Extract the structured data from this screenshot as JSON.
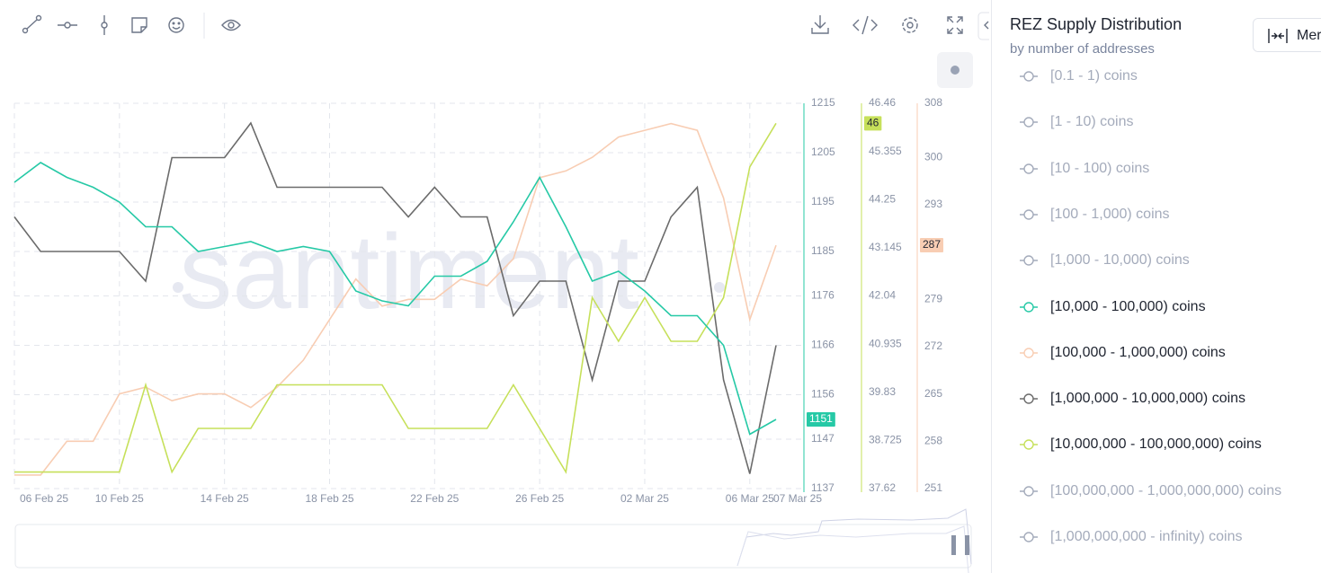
{
  "chart_data": {
    "type": "line",
    "watermark": "santiment",
    "categories": [
      "06 Feb 25",
      "07 Feb 25",
      "08 Feb 25",
      "09 Feb 25",
      "10 Feb 25",
      "11 Feb 25",
      "12 Feb 25",
      "13 Feb 25",
      "14 Feb 25",
      "15 Feb 25",
      "16 Feb 25",
      "17 Feb 25",
      "18 Feb 25",
      "19 Feb 25",
      "20 Feb 25",
      "21 Feb 25",
      "22 Feb 25",
      "23 Feb 25",
      "24 Feb 25",
      "25 Feb 25",
      "26 Feb 25",
      "27 Feb 25",
      "28 Feb 25",
      "01 Mar 25",
      "02 Mar 25",
      "03 Mar 25",
      "04 Mar 25",
      "05 Mar 25",
      "06 Mar 25",
      "07 Mar 25"
    ],
    "xticks": [
      "06 Feb 25",
      "10 Feb 25",
      "14 Feb 25",
      "18 Feb 25",
      "22 Feb 25",
      "26 Feb 25",
      "02 Mar 25",
      "06 Mar 25",
      "07 Mar 25"
    ],
    "ylim": [
      1137,
      1215
    ],
    "yticks": [
      1215,
      1205,
      1195,
      1185,
      1176,
      1166,
      1156,
      1147,
      1137
    ],
    "y2lim": [
      37.62,
      46.46
    ],
    "y2ticks": [
      46.46,
      45.355,
      44.25,
      43.145,
      42.04,
      40.935,
      39.83,
      38.725,
      37.62
    ],
    "y3lim": [
      251,
      308
    ],
    "y3ticks": [
      308,
      300,
      293,
      279,
      272,
      265,
      258,
      251
    ],
    "grid": true,
    "series": [
      {
        "name": "[10,000 - 100,000) coins",
        "color": "#26c9a6",
        "axis": "y",
        "values": [
          1199,
          1203,
          1200,
          1198,
          1195,
          1190,
          1190,
          1185,
          1186,
          1187,
          1185,
          1186,
          1185,
          1177,
          1175,
          1174,
          1180,
          1180,
          1183,
          1191,
          1200,
          1190,
          1179,
          1181,
          1177,
          1172,
          1172,
          1166,
          1148,
          1151
        ]
      },
      {
        "name": "[100,000 - 1,000,000) coins",
        "color": "#f8cdb3",
        "axis": "y3",
        "values": [
          253,
          253,
          258,
          258,
          265,
          266,
          264,
          265,
          265,
          263,
          266,
          270,
          276,
          282,
          278,
          279,
          279,
          282,
          281,
          285,
          297,
          298,
          300,
          303,
          304,
          305,
          304,
          294,
          276,
          287
        ]
      },
      {
        "name": "[1,000,000 - 10,000,000) coins",
        "color": "#6b6b6b",
        "axis": "y",
        "values": [
          1192,
          1185,
          1185,
          1185,
          1185,
          1179,
          1204,
          1204,
          1204,
          1211,
          1198,
          1198,
          1198,
          1198,
          1198,
          1192,
          1198,
          1192,
          1192,
          1172,
          1179,
          1179,
          1159,
          1179,
          1179,
          1192,
          1198,
          1159,
          1140,
          1166
        ]
      },
      {
        "name": "[10,000,000 - 100,000,000) coins",
        "color": "#c6e05a",
        "axis": "y2",
        "values": [
          38,
          38,
          38,
          38,
          38,
          40,
          38,
          39,
          39,
          39,
          40,
          40,
          40,
          40,
          40,
          39,
          39,
          39,
          39,
          40,
          39,
          38,
          42,
          41,
          42,
          41,
          41,
          42,
          45,
          46
        ]
      }
    ],
    "legend_before": [
      "[0.1 - 1) coins",
      "[1 - 10) coins",
      "[10 - 100) coins",
      "[100 - 1,000) coins",
      "[1,000 - 10,000) coins"
    ],
    "legend_after": [
      "[100,000,000 - 1,000,000,000) coins",
      "[1,000,000,000 - infinity) coins"
    ],
    "inactive_color": "#a4abbb"
  },
  "sidebar": {
    "title": "REZ Supply Distribution",
    "subtitle": "by number of addresses",
    "button": "Merge"
  }
}
